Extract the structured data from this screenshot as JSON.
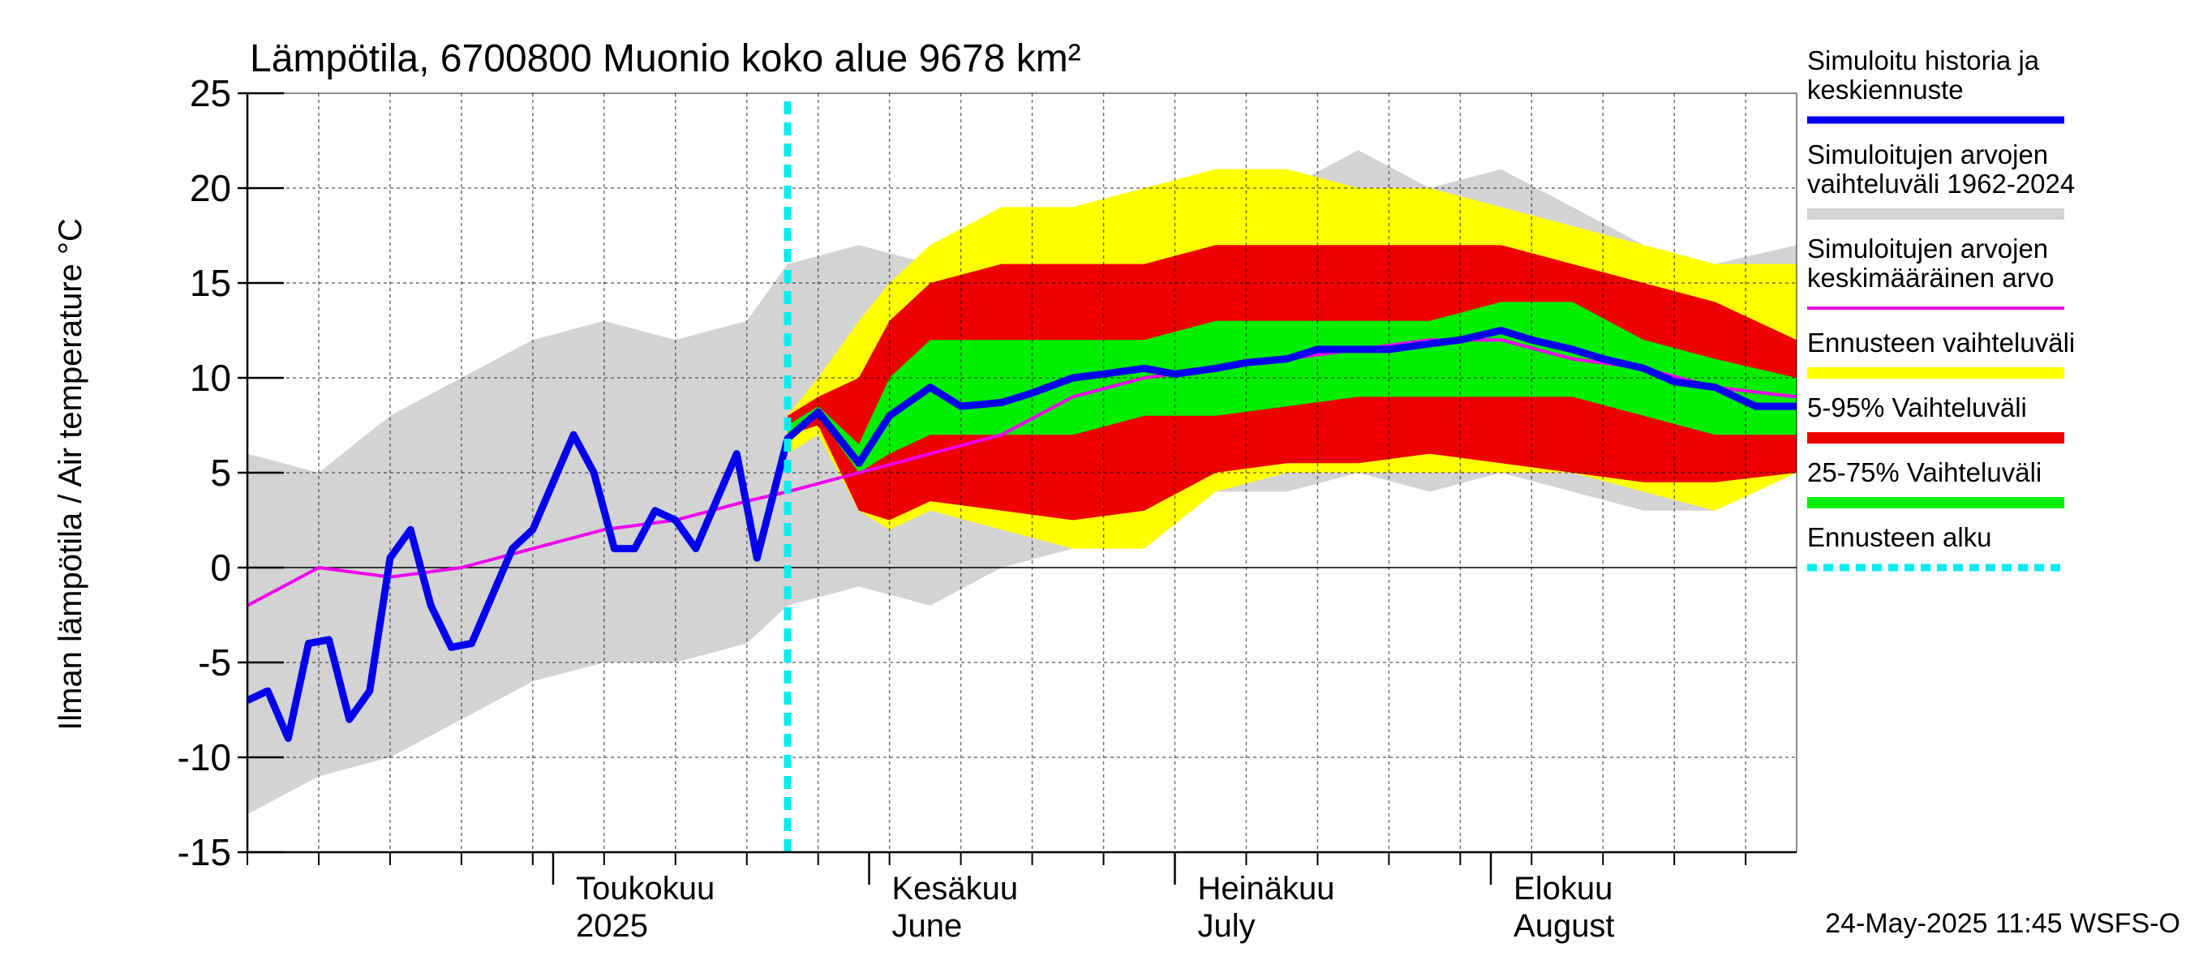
{
  "chart_data": {
    "type": "area",
    "title": "Lämpötila, 6700800 Muonio koko alue 9678 km²",
    "ylabel": "Ilman lämpötila / Air temperature   °C",
    "ylim": [
      -15,
      25
    ],
    "yticks": [
      25,
      20,
      15,
      10,
      5,
      0,
      -5,
      -10,
      -15
    ],
    "xlim": [
      "2025-04-01",
      "2025-08-31"
    ],
    "x_month_labels": [
      {
        "line1": "Toukokuu",
        "line2": "2025",
        "date": "2025-05-01"
      },
      {
        "line1": "Kesäkuu",
        "line2": "June",
        "date": "2025-06-01"
      },
      {
        "line1": "Heinäkuu",
        "line2": "July",
        "date": "2025-07-01"
      },
      {
        "line1": "Elokuu",
        "line2": "August",
        "date": "2025-08-01"
      }
    ],
    "grid": true,
    "legend_placement": "right",
    "forecast_start": "2025-05-24",
    "legend": [
      {
        "label": "Simuloitu historia ja keskiennuste",
        "lines": [
          "Simuloitu historia ja",
          "keskiennuste"
        ],
        "color": "#0000ee",
        "style": "line-thick"
      },
      {
        "label": "Simuloitujen arvojen vaihteluväli 1962-2024",
        "lines": [
          "Simuloitujen arvojen",
          "vaihteluväli 1962-2024"
        ],
        "color": "#d3d3d3",
        "style": "band"
      },
      {
        "label": "Simuloitujen arvojen keskimääräinen arvo",
        "lines": [
          "Simuloitujen arvojen",
          "keskimääräinen arvo"
        ],
        "color": "#ee00ee",
        "style": "line-thin"
      },
      {
        "label": "Ennusteen vaihteluväli",
        "lines": [
          "Ennusteen vaihteluväli"
        ],
        "color": "#ffff00",
        "style": "band"
      },
      {
        "label": "5-95% Vaihteluväli",
        "lines": [
          "5-95% Vaihteluväli"
        ],
        "color": "#ee0000",
        "style": "band"
      },
      {
        "label": "25-75% Vaihteluväli",
        "lines": [
          "25-75% Vaihteluväli"
        ],
        "color": "#00ee00",
        "style": "band"
      },
      {
        "label": "Ennusteen alku",
        "lines": [
          "Ennusteen alku"
        ],
        "color": "#00eeee",
        "style": "dashed"
      }
    ],
    "series": {
      "history_band": {
        "x": [
          "2025-04-01",
          "2025-04-08",
          "2025-04-15",
          "2025-04-22",
          "2025-04-29",
          "2025-05-06",
          "2025-05-13",
          "2025-05-20",
          "2025-05-24",
          "2025-05-31",
          "2025-06-07",
          "2025-06-14",
          "2025-06-21",
          "2025-06-28",
          "2025-07-05",
          "2025-07-12",
          "2025-07-19",
          "2025-07-26",
          "2025-08-02",
          "2025-08-09",
          "2025-08-16",
          "2025-08-23",
          "2025-08-31"
        ],
        "lower": [
          -13,
          -11,
          -10,
          -8,
          -6,
          -5,
          -5,
          -4,
          -2,
          -1,
          -2,
          0,
          1,
          2,
          4,
          4,
          5,
          4,
          5,
          4,
          3,
          3,
          5
        ],
        "upper": [
          6,
          5,
          8,
          10,
          12,
          13,
          12,
          13,
          16,
          17,
          16,
          17,
          19,
          20,
          19,
          20,
          22,
          20,
          21,
          19,
          17,
          16,
          17
        ]
      },
      "forecast_full": {
        "x": [
          "2025-05-24",
          "2025-05-27",
          "2025-05-31",
          "2025-06-03",
          "2025-06-07",
          "2025-06-14",
          "2025-06-21",
          "2025-06-28",
          "2025-07-05",
          "2025-07-12",
          "2025-07-19",
          "2025-07-26",
          "2025-08-02",
          "2025-08-09",
          "2025-08-16",
          "2025-08-23",
          "2025-08-31"
        ],
        "lower": [
          6,
          7,
          3,
          2,
          3,
          2,
          1,
          1,
          4,
          5,
          5,
          5,
          5,
          5,
          4,
          3,
          5
        ],
        "upper": [
          8,
          10,
          13,
          15,
          17,
          19,
          19,
          20,
          21,
          21,
          20,
          20,
          19,
          18,
          17,
          16,
          16
        ]
      },
      "forecast_5_95": {
        "x": [
          "2025-05-24",
          "2025-05-27",
          "2025-05-31",
          "2025-06-03",
          "2025-06-07",
          "2025-06-14",
          "2025-06-21",
          "2025-06-28",
          "2025-07-05",
          "2025-07-12",
          "2025-07-19",
          "2025-07-26",
          "2025-08-02",
          "2025-08-09",
          "2025-08-16",
          "2025-08-23",
          "2025-08-31"
        ],
        "lower": [
          7,
          7.5,
          3,
          2.5,
          3.5,
          3,
          2.5,
          3,
          5,
          5.5,
          5.5,
          6,
          5.5,
          5,
          4.5,
          4.5,
          5
        ],
        "upper": [
          8,
          9,
          10,
          13,
          15,
          16,
          16,
          16,
          17,
          17,
          17,
          17,
          17,
          16,
          15,
          14,
          12
        ]
      },
      "forecast_25_75": {
        "x": [
          "2025-05-24",
          "2025-05-27",
          "2025-05-31",
          "2025-06-03",
          "2025-06-07",
          "2025-06-14",
          "2025-06-21",
          "2025-06-28",
          "2025-07-05",
          "2025-07-12",
          "2025-07-19",
          "2025-07-26",
          "2025-08-02",
          "2025-08-09",
          "2025-08-16",
          "2025-08-23",
          "2025-08-31"
        ],
        "lower": [
          7,
          8,
          5,
          6,
          7,
          7,
          7,
          8,
          8,
          8.5,
          9,
          9,
          9,
          9,
          8,
          7,
          7
        ],
        "upper": [
          7.5,
          8.5,
          6.5,
          10,
          12,
          12,
          12,
          12,
          13,
          13,
          13,
          13,
          14,
          14,
          12,
          11,
          10
        ]
      },
      "mean_forecast": {
        "x": [
          "2025-04-01",
          "2025-04-03",
          "2025-04-05",
          "2025-04-07",
          "2025-04-09",
          "2025-04-11",
          "2025-04-13",
          "2025-04-15",
          "2025-04-17",
          "2025-04-19",
          "2025-04-21",
          "2025-04-23",
          "2025-04-25",
          "2025-04-27",
          "2025-04-29",
          "2025-05-01",
          "2025-05-03",
          "2025-05-05",
          "2025-05-07",
          "2025-05-09",
          "2025-05-11",
          "2025-05-13",
          "2025-05-15",
          "2025-05-17",
          "2025-05-19",
          "2025-05-21",
          "2025-05-24",
          "2025-05-27",
          "2025-05-31",
          "2025-06-03",
          "2025-06-07",
          "2025-06-10",
          "2025-06-14",
          "2025-06-17",
          "2025-06-21",
          "2025-06-24",
          "2025-06-28",
          "2025-07-01",
          "2025-07-05",
          "2025-07-08",
          "2025-07-12",
          "2025-07-15",
          "2025-07-19",
          "2025-07-22",
          "2025-07-26",
          "2025-07-29",
          "2025-08-02",
          "2025-08-05",
          "2025-08-09",
          "2025-08-12",
          "2025-08-16",
          "2025-08-19",
          "2025-08-23",
          "2025-08-27",
          "2025-08-31"
        ],
        "values": [
          -7,
          -6.5,
          -9,
          -4,
          -3.8,
          -8,
          -6.5,
          0.5,
          2,
          -2,
          -4.2,
          -4,
          -1.5,
          1,
          2,
          4.5,
          7,
          5,
          1,
          1,
          3,
          2.5,
          1,
          3.5,
          6,
          0.5,
          6.8,
          8.2,
          5.5,
          8,
          9.5,
          8.5,
          8.7,
          9.2,
          10,
          10.2,
          10.5,
          10.2,
          10.5,
          10.8,
          11,
          11.5,
          11.5,
          11.5,
          11.8,
          12,
          12.5,
          12,
          11.5,
          11,
          10.5,
          9.8,
          9.5,
          8.5,
          8.5
        ]
      },
      "climate_mean": {
        "x": [
          "2025-04-01",
          "2025-04-08",
          "2025-04-15",
          "2025-04-22",
          "2025-04-29",
          "2025-05-06",
          "2025-05-13",
          "2025-05-20",
          "2025-05-24",
          "2025-05-31",
          "2025-06-07",
          "2025-06-14",
          "2025-06-21",
          "2025-06-28",
          "2025-07-05",
          "2025-07-12",
          "2025-07-19",
          "2025-07-26",
          "2025-08-02",
          "2025-08-09",
          "2025-08-16",
          "2025-08-23",
          "2025-08-31"
        ],
        "values": [
          -2,
          0,
          -0.5,
          0,
          1,
          2,
          2.5,
          3.5,
          4,
          5,
          6,
          7,
          9,
          10,
          10.5,
          11,
          11.5,
          12,
          12,
          11,
          10.5,
          9.5,
          9
        ]
      }
    }
  },
  "timestamp": "24-May-2025 11:45 WSFS-O"
}
